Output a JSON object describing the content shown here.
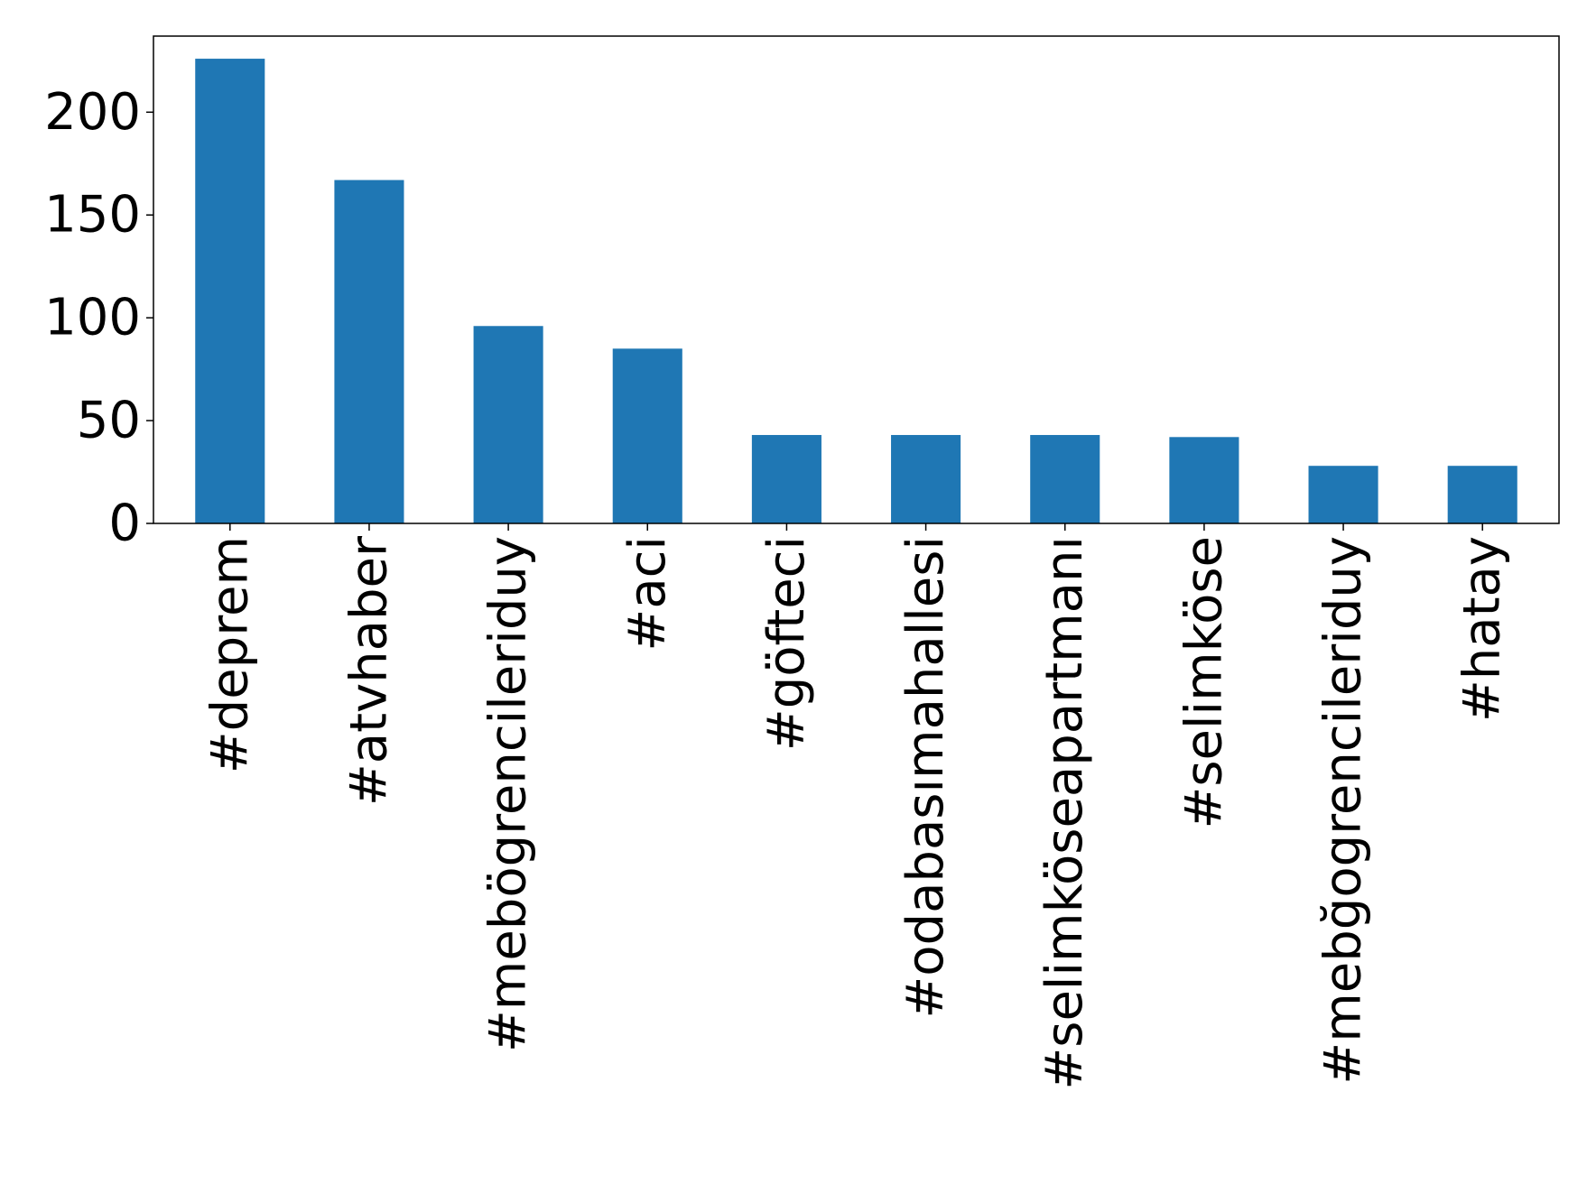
{
  "chart_data": {
    "type": "bar",
    "title": "",
    "xlabel": "",
    "ylabel": "",
    "categories": [
      "#deprem",
      "#atvhaber",
      "#mebögrencileriduy",
      "#aci",
      "#göfteci",
      "#odabasımahallesi",
      "#selimköseapartmanı",
      "#selimköse",
      "#mebğogrencileriduy",
      "#hatay"
    ],
    "values": [
      226,
      167,
      96,
      85,
      43,
      43,
      43,
      42,
      28,
      28
    ],
    "yticks": [
      0,
      50,
      100,
      150,
      200
    ],
    "ylim": [
      0,
      237
    ],
    "grid": false,
    "legend": "none",
    "color": "#1f77b4"
  }
}
